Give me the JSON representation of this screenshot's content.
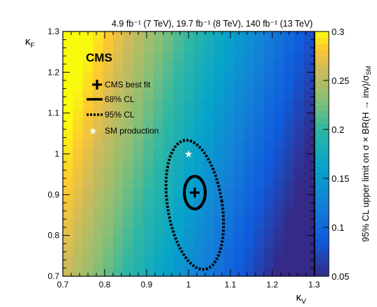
{
  "chart_data": {
    "type": "heatmap",
    "title_top": "4.9 fb⁻¹ (7 TeV), 19.7 fb⁻¹ (8 TeV), 140 fb⁻¹ (13 TeV)",
    "experiment_label": "CMS",
    "xlabel": "κ",
    "xlabel_sub": "V",
    "ylabel": "κ",
    "ylabel_sub": "F",
    "zlabel": "95% CL upper limit on σ × BR(H → inv)/σ",
    "zlabel_sub": "SM",
    "xlim": [
      0.7,
      1.3
    ],
    "ylim": [
      0.7,
      1.3
    ],
    "zlim": [
      0.05,
      0.3
    ],
    "x_ticks": [
      0.7,
      0.8,
      0.9,
      1.0,
      1.1,
      1.2,
      1.3
    ],
    "y_ticks": [
      0.7,
      0.8,
      0.9,
      1.0,
      1.1,
      1.2,
      1.3
    ],
    "z_ticks": [
      0.05,
      0.1,
      0.15,
      0.2,
      0.25,
      0.3
    ],
    "x_tick_labels": [
      "0.7",
      "0.8",
      "0.9",
      "1",
      "1.1",
      "1.2",
      "1.3"
    ],
    "y_tick_labels": [
      "0.7",
      "0.8",
      "0.9",
      "1",
      "1.1",
      "1.2",
      "1.3"
    ],
    "z_tick_labels": [
      "0.05",
      "0.1",
      "0.15",
      "0.2",
      "0.25",
      "0.3"
    ],
    "grid": false,
    "heatmap_bins": 25,
    "heatmap_model": "z(kV,kF) = 0.17 - 0.42*(kV - 1) + 0.11*(kF - 1), clipped to [0.05, 0.3]",
    "best_fit": {
      "x": 1.015,
      "y": 0.905,
      "label": "CMS best fit"
    },
    "sm_point": {
      "x": 1.0,
      "y": 1.0,
      "label": "SM production"
    },
    "contour_68": {
      "label": "68% CL",
      "cx": 1.015,
      "cy": 0.905,
      "half_width": 0.025,
      "half_height": 0.04
    },
    "contour_95": {
      "label": "95% CL",
      "cx": 1.015,
      "cy": 0.875,
      "half_width": 0.065,
      "half_height": 0.16,
      "tilt_deg": -9
    },
    "legend": {
      "placement": "top-left",
      "entries": [
        "CMS best fit",
        "68% CL",
        "95% CL",
        "SM production"
      ]
    }
  }
}
